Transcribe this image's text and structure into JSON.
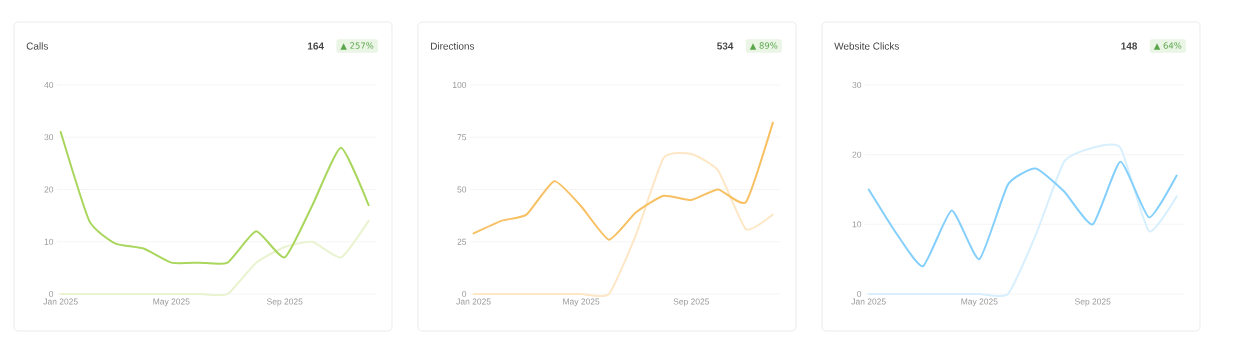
{
  "chart_data": [
    {
      "type": "line",
      "title": "Calls",
      "annotations": [
        "164",
        "▲ 257%"
      ],
      "x": [
        "2025-01-01",
        "2025-02-01",
        "2025-03-01",
        "2025-04-01",
        "2025-05-01",
        "2025-06-01",
        "2025-07-01",
        "2025-08-01",
        "2025-09-01",
        "2025-10-01",
        "2025-11-01",
        "2025-12-01"
      ],
      "series": [
        {
          "color": "#a9d65c",
          "values": [
            31,
            14,
            9.7,
            8.7,
            6,
            6,
            6,
            12,
            7,
            17,
            28,
            17
          ]
        },
        {
          "color": "#e9f3cf",
          "values": [
            0,
            0,
            0,
            0,
            0,
            0,
            0,
            6,
            9,
            10,
            7,
            14
          ]
        }
      ],
      "xlim": [
        "2024-12-28",
        "2025-12-09"
      ],
      "xticks": [
        {
          "value": "2025-01-01",
          "label": "Jan 2025"
        },
        {
          "value": "2025-05-01",
          "label": "May 2025"
        },
        {
          "value": "2025-09-01",
          "label": "Sep 2025"
        }
      ],
      "ylim": [
        0,
        40
      ],
      "yticks": [
        0,
        10,
        20,
        30,
        40
      ],
      "grid": "y"
    },
    {
      "type": "line",
      "title": "Directions",
      "annotations": [
        "534",
        "▲ 89%"
      ],
      "x": [
        "2025-01-01",
        "2025-02-01",
        "2025-03-01",
        "2025-04-01",
        "2025-05-01",
        "2025-06-01",
        "2025-07-01",
        "2025-08-01",
        "2025-09-01",
        "2025-10-01",
        "2025-11-01",
        "2025-12-01"
      ],
      "series": [
        {
          "color": "#f7c062",
          "values": [
            29,
            35,
            38,
            54,
            42,
            26,
            39,
            47,
            45,
            50,
            44,
            82
          ]
        },
        {
          "color": "#fde7c6",
          "values": [
            0,
            0,
            0,
            0,
            0,
            0,
            28,
            65,
            67,
            59,
            31,
            38
          ]
        }
      ],
      "xlim": [
        "2024-12-28",
        "2025-12-09"
      ],
      "xticks": [
        {
          "value": "2025-01-01",
          "label": "Jan 2025"
        },
        {
          "value": "2025-05-01",
          "label": "May 2025"
        },
        {
          "value": "2025-09-01",
          "label": "Sep 2025"
        }
      ],
      "ylim": [
        0,
        100
      ],
      "yticks": [
        0,
        25,
        50,
        75,
        100
      ],
      "grid": "y"
    },
    {
      "type": "line",
      "title": "Website Clicks",
      "annotations": [
        "148",
        "▲ 64%"
      ],
      "x": [
        "2025-01-01",
        "2025-02-01",
        "2025-03-01",
        "2025-04-01",
        "2025-05-01",
        "2025-06-01",
        "2025-07-01",
        "2025-08-01",
        "2025-09-01",
        "2025-10-01",
        "2025-11-01",
        "2025-12-01"
      ],
      "series": [
        {
          "color": "#84cffb",
          "values": [
            15,
            8.5,
            4,
            12,
            5,
            15.7,
            18,
            14.7,
            10,
            19,
            11,
            17
          ]
        },
        {
          "color": "#d8effd",
          "values": [
            0,
            0,
            0,
            0,
            0,
            0,
            8.4,
            19,
            21,
            21,
            9,
            14
          ]
        }
      ],
      "xlim": [
        "2024-12-28",
        "2025-12-09"
      ],
      "xticks": [
        {
          "value": "2025-01-01",
          "label": "Jan 2025"
        },
        {
          "value": "2025-05-01",
          "label": "May 2025"
        },
        {
          "value": "2025-09-01",
          "label": "Sep 2025"
        }
      ],
      "ylim": [
        0,
        30
      ],
      "yticks": [
        0,
        10,
        20,
        30
      ],
      "grid": "y"
    }
  ]
}
